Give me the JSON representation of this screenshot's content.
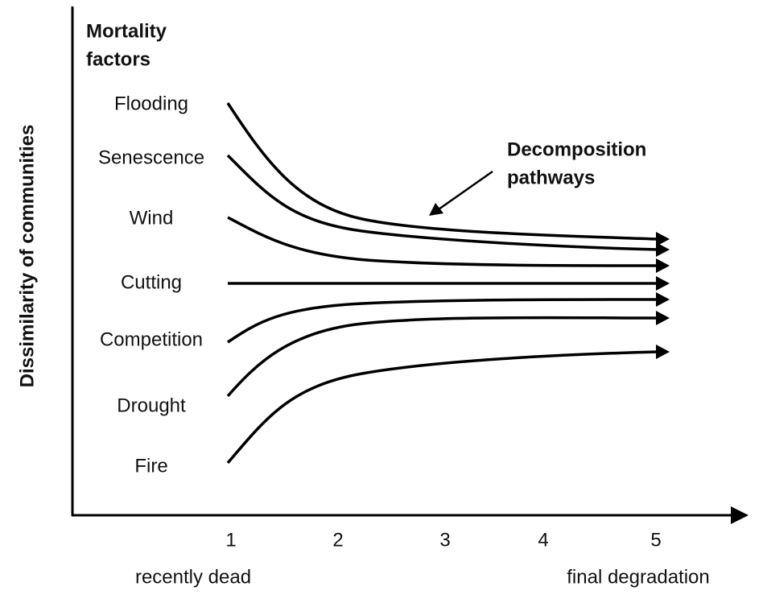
{
  "axis_label_y": "Dissimilarity of communities",
  "legend_title": [
    "Mortality",
    "factors"
  ],
  "factors": [
    "Flooding",
    "Senescence",
    "Wind",
    "Cutting",
    "Competition",
    "Drought",
    "Fire"
  ],
  "annotation": [
    "Decomposition",
    "pathways"
  ],
  "x_ticks": [
    1,
    2,
    3,
    4,
    5
  ],
  "x_start_label": "recently dead",
  "x_end_label": "final degradation"
}
